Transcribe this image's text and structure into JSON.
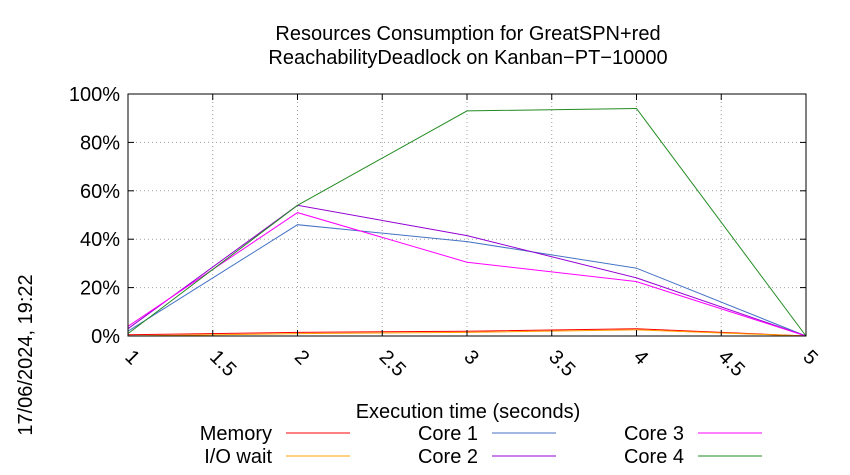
{
  "chart_data": {
    "type": "line",
    "title_line1": "Resources Consumption for GreatSPN+red",
    "title_line2": "ReachabilityDeadlock on Kanban−PT−10000",
    "xlabel": "Execution time (seconds)",
    "ylabel": "",
    "side_label": "17/06/2024, 19:22",
    "xlim": [
      1,
      5
    ],
    "ylim": [
      0,
      100
    ],
    "x_ticks": [
      "1",
      "1.5",
      "2",
      "2.5",
      "3",
      "3.5",
      "4",
      "4.5",
      "5"
    ],
    "y_ticks": [
      "0%",
      "20%",
      "40%",
      "60%",
      "80%",
      "100%"
    ],
    "grid": true,
    "legend_position": "bottom",
    "series": [
      {
        "name": "Memory",
        "color": "#ff0000",
        "x": [
          1,
          2,
          3,
          4,
          5
        ],
        "y": [
          0.5,
          1.5,
          2,
          3,
          0
        ]
      },
      {
        "name": "I/O wait",
        "color": "#ffa000",
        "x": [
          1,
          2,
          3,
          4,
          5
        ],
        "y": [
          0,
          1,
          1.5,
          2.5,
          0
        ]
      },
      {
        "name": "Core 1",
        "color": "#4472c4",
        "x": [
          1,
          2,
          3,
          4,
          5
        ],
        "y": [
          2,
          46,
          39,
          28,
          0
        ]
      },
      {
        "name": "Core 2",
        "color": "#9400d3",
        "x": [
          1,
          2,
          3,
          4,
          5
        ],
        "y": [
          3,
          54,
          41.5,
          24,
          0
        ]
      },
      {
        "name": "Core 3",
        "color": "#ff00ff",
        "x": [
          1,
          2,
          3,
          4,
          5
        ],
        "y": [
          4,
          51,
          30.5,
          22.5,
          0
        ]
      },
      {
        "name": "Core 4",
        "color": "#228b22",
        "x": [
          1,
          2,
          3,
          4,
          5
        ],
        "y": [
          1,
          54,
          93,
          94,
          0
        ]
      }
    ]
  }
}
